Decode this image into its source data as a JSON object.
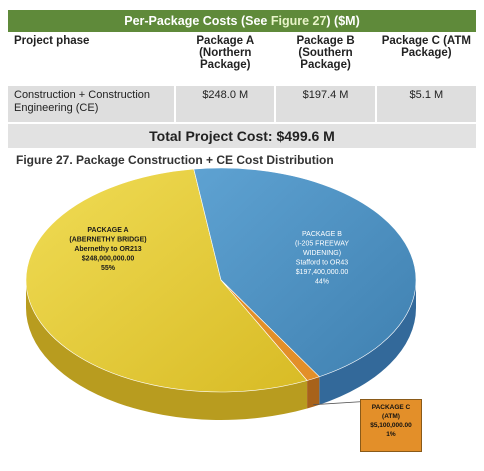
{
  "table": {
    "title_prefix": "Per-Package Costs (See ",
    "title_figure_ref": "Figure 27",
    "title_suffix": ") ($M)",
    "headers": [
      "Project phase",
      "Package A (Northern Package)",
      "Package B (Southern Package)",
      "Package C (ATM Package)"
    ],
    "row": {
      "phase": "Construction + Construction Engineering (CE)",
      "values": [
        "$248.0 M",
        "$197.4 M",
        "$5.1 M"
      ]
    },
    "total": "Total Project Cost: $499.6 M"
  },
  "figure_caption": "Figure 27. Package Construction + CE Cost Distribution",
  "colors": {
    "package_a": "#e8cd3a",
    "package_b": "#4f93c3",
    "package_c": "#e38f29",
    "header_bar": "#5f8a3a"
  },
  "chart_data": {
    "type": "pie",
    "slices": [
      {
        "label_lines": [
          "PACKAGE A",
          "(ABERNETHY BRIDGE)",
          "Abernethy to OR213",
          "$248,000,000.00",
          "55%"
        ],
        "value": 248000000,
        "percent": 55
      },
      {
        "label_lines": [
          "PACKAGE B",
          "(I-205 FREEWAY",
          "WIDENING)",
          "Stafford to OR43",
          "$197,400,000.00",
          "44%"
        ],
        "value": 197400000,
        "percent": 44
      },
      {
        "label_lines": [
          "PACKAGE C",
          "(ATM)",
          "$5,100,000.00",
          "1%"
        ],
        "value": 5100000,
        "percent": 1
      }
    ]
  }
}
